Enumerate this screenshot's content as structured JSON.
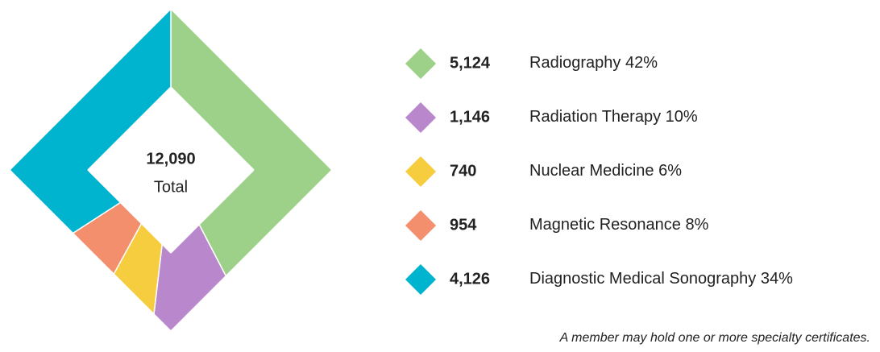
{
  "chart_data": {
    "type": "pie",
    "categories": [
      "Radiography",
      "Radiation Therapy",
      "Nuclear Medicine",
      "Magnetic Resonance",
      "Diagnostic Medical Sonography"
    ],
    "values": [
      5124,
      1146,
      740,
      954,
      4126
    ],
    "value_labels": [
      "5,124",
      "1,146",
      "740",
      "954",
      "4,126"
    ],
    "percent_labels": [
      "42%",
      "10%",
      "6%",
      "8%",
      "34%"
    ],
    "colors": [
      "#9dd088",
      "#b987cc",
      "#f6cd3f",
      "#f48f6e",
      "#00b4d0"
    ],
    "total_label": "12,090",
    "total_text": "Total",
    "note": "A member may hold one or more specialty certificates."
  }
}
